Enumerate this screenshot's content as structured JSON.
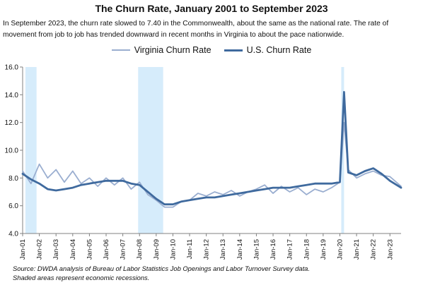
{
  "title": "The Churn Rate, January 2001 to September 2023",
  "subtitle": "In September 2023, the churn rate slowed to 7.40 in the Commonwealth, about the same as the national rate. The rate of movement from job to job has trended downward in recent months in Virginia to about the pace nationwide.",
  "source_line1": "Source: DWDA analysis of Bureau of Labor Statistics Job Openings and Labor Turnover Survey data.",
  "source_line2": "Shaded areas represent economic recessions.",
  "colors": {
    "virginia": "#9aaed0",
    "us": "#3f6a9e",
    "recession": "#d6ecfb",
    "axis": "#808080"
  },
  "chart_data": {
    "type": "line",
    "title": "The Churn Rate, January 2001 to September 2023",
    "xlabel": "",
    "ylabel": "",
    "ylim": [
      4.0,
      16.0
    ],
    "yticks": [
      "4.0",
      "6.0",
      "8.0",
      "10.0",
      "12.0",
      "14.0",
      "16.0"
    ],
    "xticks": [
      "Jan-01",
      "Jan-02",
      "Jan-03",
      "Jan-04",
      "Jan-05",
      "Jan-06",
      "Jan-07",
      "Jan-08",
      "Jan-09",
      "Jan-10",
      "Jan-11",
      "Jan-12",
      "Jan-13",
      "Jan-14",
      "Jan-15",
      "Jan-16",
      "Jan-17",
      "Jan-18",
      "Jan-19",
      "Jan-20",
      "Jan-21",
      "Jan-22",
      "Jan-23"
    ],
    "grid": false,
    "legend_position": "top-center",
    "recessions": [
      [
        "2001-03",
        "2001-11"
      ],
      [
        "2007-12",
        "2009-06"
      ],
      [
        "2020-02",
        "2020-04"
      ]
    ],
    "series": [
      {
        "name": "Virginia Churn Rate",
        "x": [
          "2001-01",
          "2001-07",
          "2002-01",
          "2002-07",
          "2003-01",
          "2003-07",
          "2004-01",
          "2004-07",
          "2005-01",
          "2005-07",
          "2006-01",
          "2006-07",
          "2007-01",
          "2007-07",
          "2008-01",
          "2008-07",
          "2009-01",
          "2009-07",
          "2010-01",
          "2010-07",
          "2011-01",
          "2011-07",
          "2012-01",
          "2012-07",
          "2013-01",
          "2013-07",
          "2014-01",
          "2014-07",
          "2015-01",
          "2015-07",
          "2016-01",
          "2016-07",
          "2017-01",
          "2017-07",
          "2018-01",
          "2018-07",
          "2019-01",
          "2019-07",
          "2020-01",
          "2020-04",
          "2020-07",
          "2021-01",
          "2021-07",
          "2022-01",
          "2022-07",
          "2023-01",
          "2023-09"
        ],
        "values": [
          8.5,
          7.6,
          9.0,
          8.0,
          8.6,
          7.7,
          8.5,
          7.6,
          8.0,
          7.4,
          8.0,
          7.5,
          8.0,
          7.2,
          7.7,
          6.8,
          6.4,
          5.9,
          5.9,
          6.3,
          6.4,
          6.9,
          6.7,
          7.0,
          6.8,
          7.1,
          6.7,
          7.0,
          7.2,
          7.5,
          6.9,
          7.4,
          7.0,
          7.3,
          6.8,
          7.2,
          7.0,
          7.3,
          7.7,
          12.0,
          8.6,
          8.0,
          8.3,
          8.5,
          8.2,
          8.1,
          7.4
        ]
      },
      {
        "name": "U.S. Churn Rate",
        "x": [
          "2001-01",
          "2001-07",
          "2002-01",
          "2002-07",
          "2003-01",
          "2003-07",
          "2004-01",
          "2004-07",
          "2005-01",
          "2005-07",
          "2006-01",
          "2006-07",
          "2007-01",
          "2007-07",
          "2008-01",
          "2008-07",
          "2009-01",
          "2009-07",
          "2010-01",
          "2010-07",
          "2011-01",
          "2011-07",
          "2012-01",
          "2012-07",
          "2013-01",
          "2013-07",
          "2014-01",
          "2014-07",
          "2015-01",
          "2015-07",
          "2016-01",
          "2016-07",
          "2017-01",
          "2017-07",
          "2018-01",
          "2018-07",
          "2019-01",
          "2019-07",
          "2020-01",
          "2020-04",
          "2020-07",
          "2021-01",
          "2021-07",
          "2022-01",
          "2022-07",
          "2023-01",
          "2023-09"
        ],
        "values": [
          8.3,
          7.9,
          7.6,
          7.2,
          7.1,
          7.2,
          7.3,
          7.5,
          7.6,
          7.7,
          7.8,
          7.8,
          7.8,
          7.6,
          7.5,
          7.0,
          6.5,
          6.1,
          6.1,
          6.3,
          6.4,
          6.5,
          6.6,
          6.6,
          6.7,
          6.8,
          6.9,
          7.0,
          7.1,
          7.2,
          7.3,
          7.3,
          7.3,
          7.4,
          7.5,
          7.6,
          7.6,
          7.6,
          7.7,
          14.2,
          8.4,
          8.2,
          8.5,
          8.7,
          8.3,
          7.8,
          7.3
        ]
      }
    ]
  }
}
